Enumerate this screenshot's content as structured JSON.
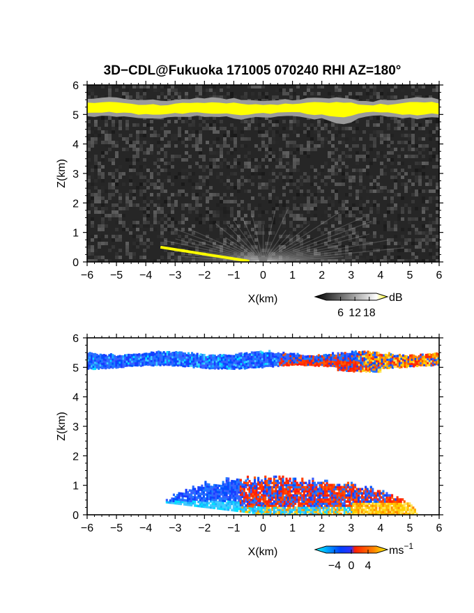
{
  "chart_data": [
    {
      "type": "heatmap",
      "panel": "reflectivity",
      "title": "3D−CDL@Fukuoka 171005 070240 RHI AZ=180°",
      "xlabel": "X(km)",
      "ylabel": "Z(km)",
      "xlim": [
        -6,
        6
      ],
      "ylim": [
        0,
        6
      ],
      "xticks": [
        "−6",
        "−5",
        "−4",
        "−3",
        "−2",
        "−1",
        "0",
        "1",
        "2",
        "3",
        "4",
        "5",
        "6"
      ],
      "yticks": [
        "0",
        "1",
        "2",
        "3",
        "4",
        "5",
        "6"
      ],
      "colorbar": {
        "unit": "dB",
        "ticks": [
          "6",
          "12",
          "18"
        ],
        "tick_values": [
          6,
          12,
          18
        ],
        "range": [
          0,
          21
        ],
        "colors": [
          "#000000",
          "#ffffff",
          "#ffff00"
        ]
      },
      "features": [
        {
          "name": "cloud layer",
          "x": [
            -6,
            6
          ],
          "z_bottom": 5.0,
          "z_top": 5.4,
          "value": "18+"
        },
        {
          "name": "near-ground clutter",
          "x": [
            -3.5,
            3.5
          ],
          "z_top": 1.3,
          "value": "6-15"
        },
        {
          "name": "ground echo",
          "x": [
            -3.5,
            0
          ],
          "z": [
            0.5,
            0
          ],
          "value": "18+"
        }
      ]
    },
    {
      "type": "heatmap",
      "panel": "doppler velocity",
      "xlabel": "X(km)",
      "ylabel": "Z(km)",
      "xlim": [
        -6,
        6
      ],
      "ylim": [
        0,
        6
      ],
      "xticks": [
        "−6",
        "−5",
        "−4",
        "−3",
        "−2",
        "−1",
        "0",
        "1",
        "2",
        "3",
        "4",
        "5",
        "6"
      ],
      "yticks": [
        "0",
        "1",
        "2",
        "3",
        "4",
        "5",
        "6"
      ],
      "colorbar": {
        "unit": "ms",
        "unit_exponent": "−1",
        "ticks": [
          "−4",
          "0",
          "4"
        ],
        "tick_values": [
          -4,
          0,
          4
        ],
        "range": [
          -6,
          6
        ],
        "colors": [
          "#00ffff",
          "#0000ff",
          "#ff0000",
          "#ffff00"
        ]
      },
      "features": [
        {
          "name": "cloud layer",
          "x": [
            -6,
            6
          ],
          "z_bottom": 4.9,
          "z_top": 5.5,
          "velocity": "negative for x<0.5, positive for x>0.5"
        },
        {
          "name": "low-level echo",
          "x": [
            -3.8,
            5.5
          ],
          "z_top": 1.25,
          "velocity": "mixed −4 to 4"
        }
      ]
    }
  ]
}
